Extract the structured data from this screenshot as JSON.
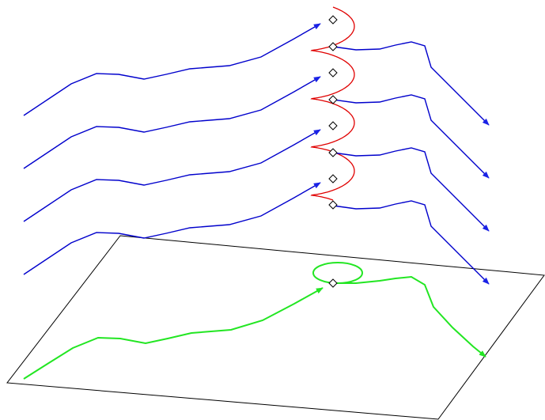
{
  "colors": {
    "background": "#ffffff",
    "plane_outline": "#000000",
    "trajectory": "#0000cc",
    "trajectory_arrow": "#1a22e6",
    "helix": "#e00000",
    "projection": "#22e622",
    "marker_stroke": "#000000",
    "marker_fill": "#ffffff"
  },
  "diagram": {
    "trajectory_count": 4,
    "helix_loops": 4,
    "has_projection_plane": true,
    "projection_loops": 1
  }
}
